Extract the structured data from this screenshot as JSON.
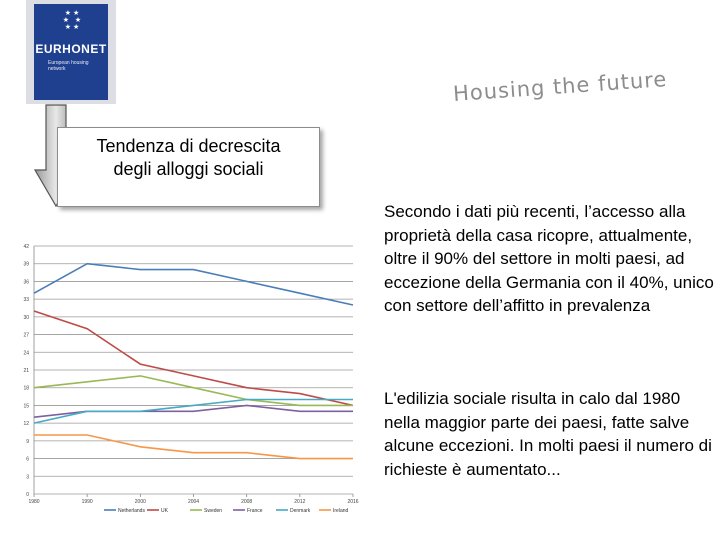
{
  "logo": {
    "text": "EURHONET",
    "subtitle": "European housing network"
  },
  "tagline": "Housing the future",
  "trend_box": {
    "line1": "Tendenza di decrescita",
    "line2": "degli alloggi sociali"
  },
  "paragraphs": [
    "Secondo i dati più recenti, l’accesso alla proprietà della casa ricopre, attualmente, oltre il 90% del settore in molti paesi, ad eccezione della Germania con il 40%, unico con settore dell’affitto in prevalenza",
    "L'edilizia sociale risulta in calo dal 1980 nella maggior parte dei paesi, fatte salve alcune eccezioni. In molti paesi il numero di richieste è aumentato..."
  ],
  "chart_data": {
    "type": "line",
    "x": [
      "1980",
      "1990",
      "2000",
      "2004",
      "2008",
      "2012",
      "2016"
    ],
    "yticks": [
      0,
      3,
      6,
      9,
      12,
      15,
      18,
      21,
      24,
      27,
      30,
      33,
      36,
      39,
      42
    ],
    "ylim": [
      0,
      42
    ],
    "grid": true,
    "legend_position": "bottom",
    "series": [
      {
        "name": "Netherlands",
        "color": "#4a7ebb",
        "values": [
          34,
          39,
          38,
          38,
          36,
          34,
          32
        ]
      },
      {
        "name": "UK",
        "color": "#be4b48",
        "values": [
          31,
          28,
          22,
          20,
          18,
          17,
          15
        ]
      },
      {
        "name": "Sweden",
        "color": "#98b954",
        "values": [
          18,
          19,
          20,
          18,
          16,
          15,
          15
        ]
      },
      {
        "name": "France",
        "color": "#7d60a0",
        "values": [
          13,
          14,
          14,
          14,
          15,
          14,
          14
        ]
      },
      {
        "name": "Denmark",
        "color": "#46aac5",
        "values": [
          12,
          14,
          14,
          15,
          16,
          16,
          16
        ]
      },
      {
        "name": "Ireland",
        "color": "#f79646",
        "values": [
          10,
          10,
          8,
          7,
          7,
          6,
          6
        ]
      }
    ]
  }
}
